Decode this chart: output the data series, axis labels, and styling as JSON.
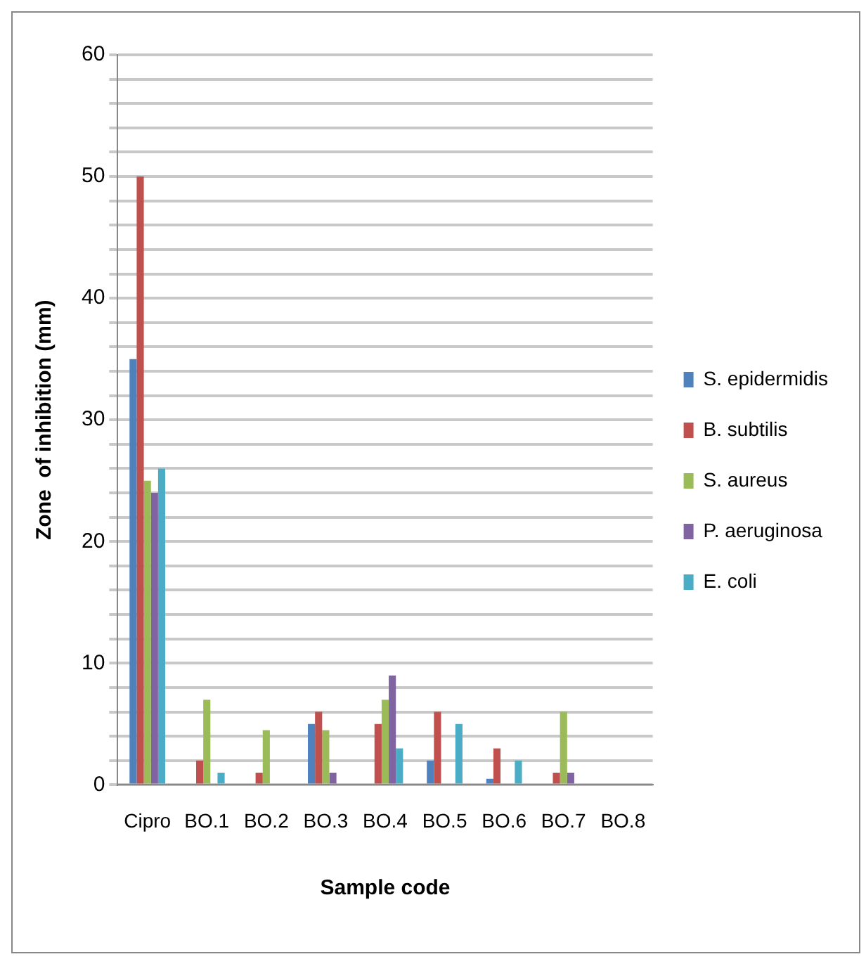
{
  "chart_data": {
    "type": "bar",
    "xlabel": "Sample code",
    "ylabel": "Zone  of inhibition (mm)",
    "categories": [
      "Cipro",
      "BO.1",
      "BO.2",
      "BO.3",
      "BO.4",
      "BO.5",
      "BO.6",
      "BO.7",
      "BO.8"
    ],
    "series": [
      {
        "name": "S. epidermidis",
        "color": "#4f81bd",
        "values": [
          35,
          null,
          null,
          5,
          null,
          2,
          0.5,
          null,
          null
        ]
      },
      {
        "name": "B. subtilis",
        "color": "#c0504d",
        "values": [
          50,
          2,
          1,
          6,
          5,
          6,
          3,
          1,
          null
        ]
      },
      {
        "name": "S. aureus",
        "color": "#9bbb59",
        "values": [
          25,
          7,
          4.5,
          4.5,
          7,
          null,
          null,
          6,
          null
        ]
      },
      {
        "name": "P. aeruginosa",
        "color": "#8064a2",
        "values": [
          24,
          null,
          null,
          1,
          9,
          null,
          null,
          1,
          null
        ]
      },
      {
        "name": "E. coli",
        "color": "#4bacc6",
        "values": [
          26,
          1,
          null,
          null,
          3,
          5,
          2,
          null,
          null
        ]
      }
    ],
    "ylim": [
      0,
      60
    ],
    "yticks": [
      0,
      {
        "value": 2,
        "label": null
      },
      {
        "value": 4,
        "label": null
      },
      {
        "value": 6,
        "label": null
      },
      {
        "value": 8,
        "label": null
      },
      10,
      {
        "value": 12,
        "label": null
      },
      {
        "value": 14,
        "label": null
      },
      {
        "value": 16,
        "label": null
      },
      {
        "value": 18,
        "label": null
      },
      20,
      {
        "value": 22,
        "label": null
      },
      {
        "value": 24,
        "label": null
      },
      {
        "value": 26,
        "label": null
      },
      {
        "value": 28,
        "label": null
      },
      30,
      {
        "value": 32,
        "label": null
      },
      {
        "value": 34,
        "label": null
      },
      {
        "value": 36,
        "label": null
      },
      {
        "value": 38,
        "label": null
      },
      40,
      {
        "value": 42,
        "label": null
      },
      {
        "value": 44,
        "label": null
      },
      {
        "value": 46,
        "label": null
      },
      {
        "value": 48,
        "label": null
      },
      50,
      {
        "value": 52,
        "label": null
      },
      {
        "value": 54,
        "label": null
      },
      {
        "value": 56,
        "label": null
      },
      {
        "value": 58,
        "label": null
      },
      60
    ],
    "grid": "y",
    "legend": "right"
  }
}
